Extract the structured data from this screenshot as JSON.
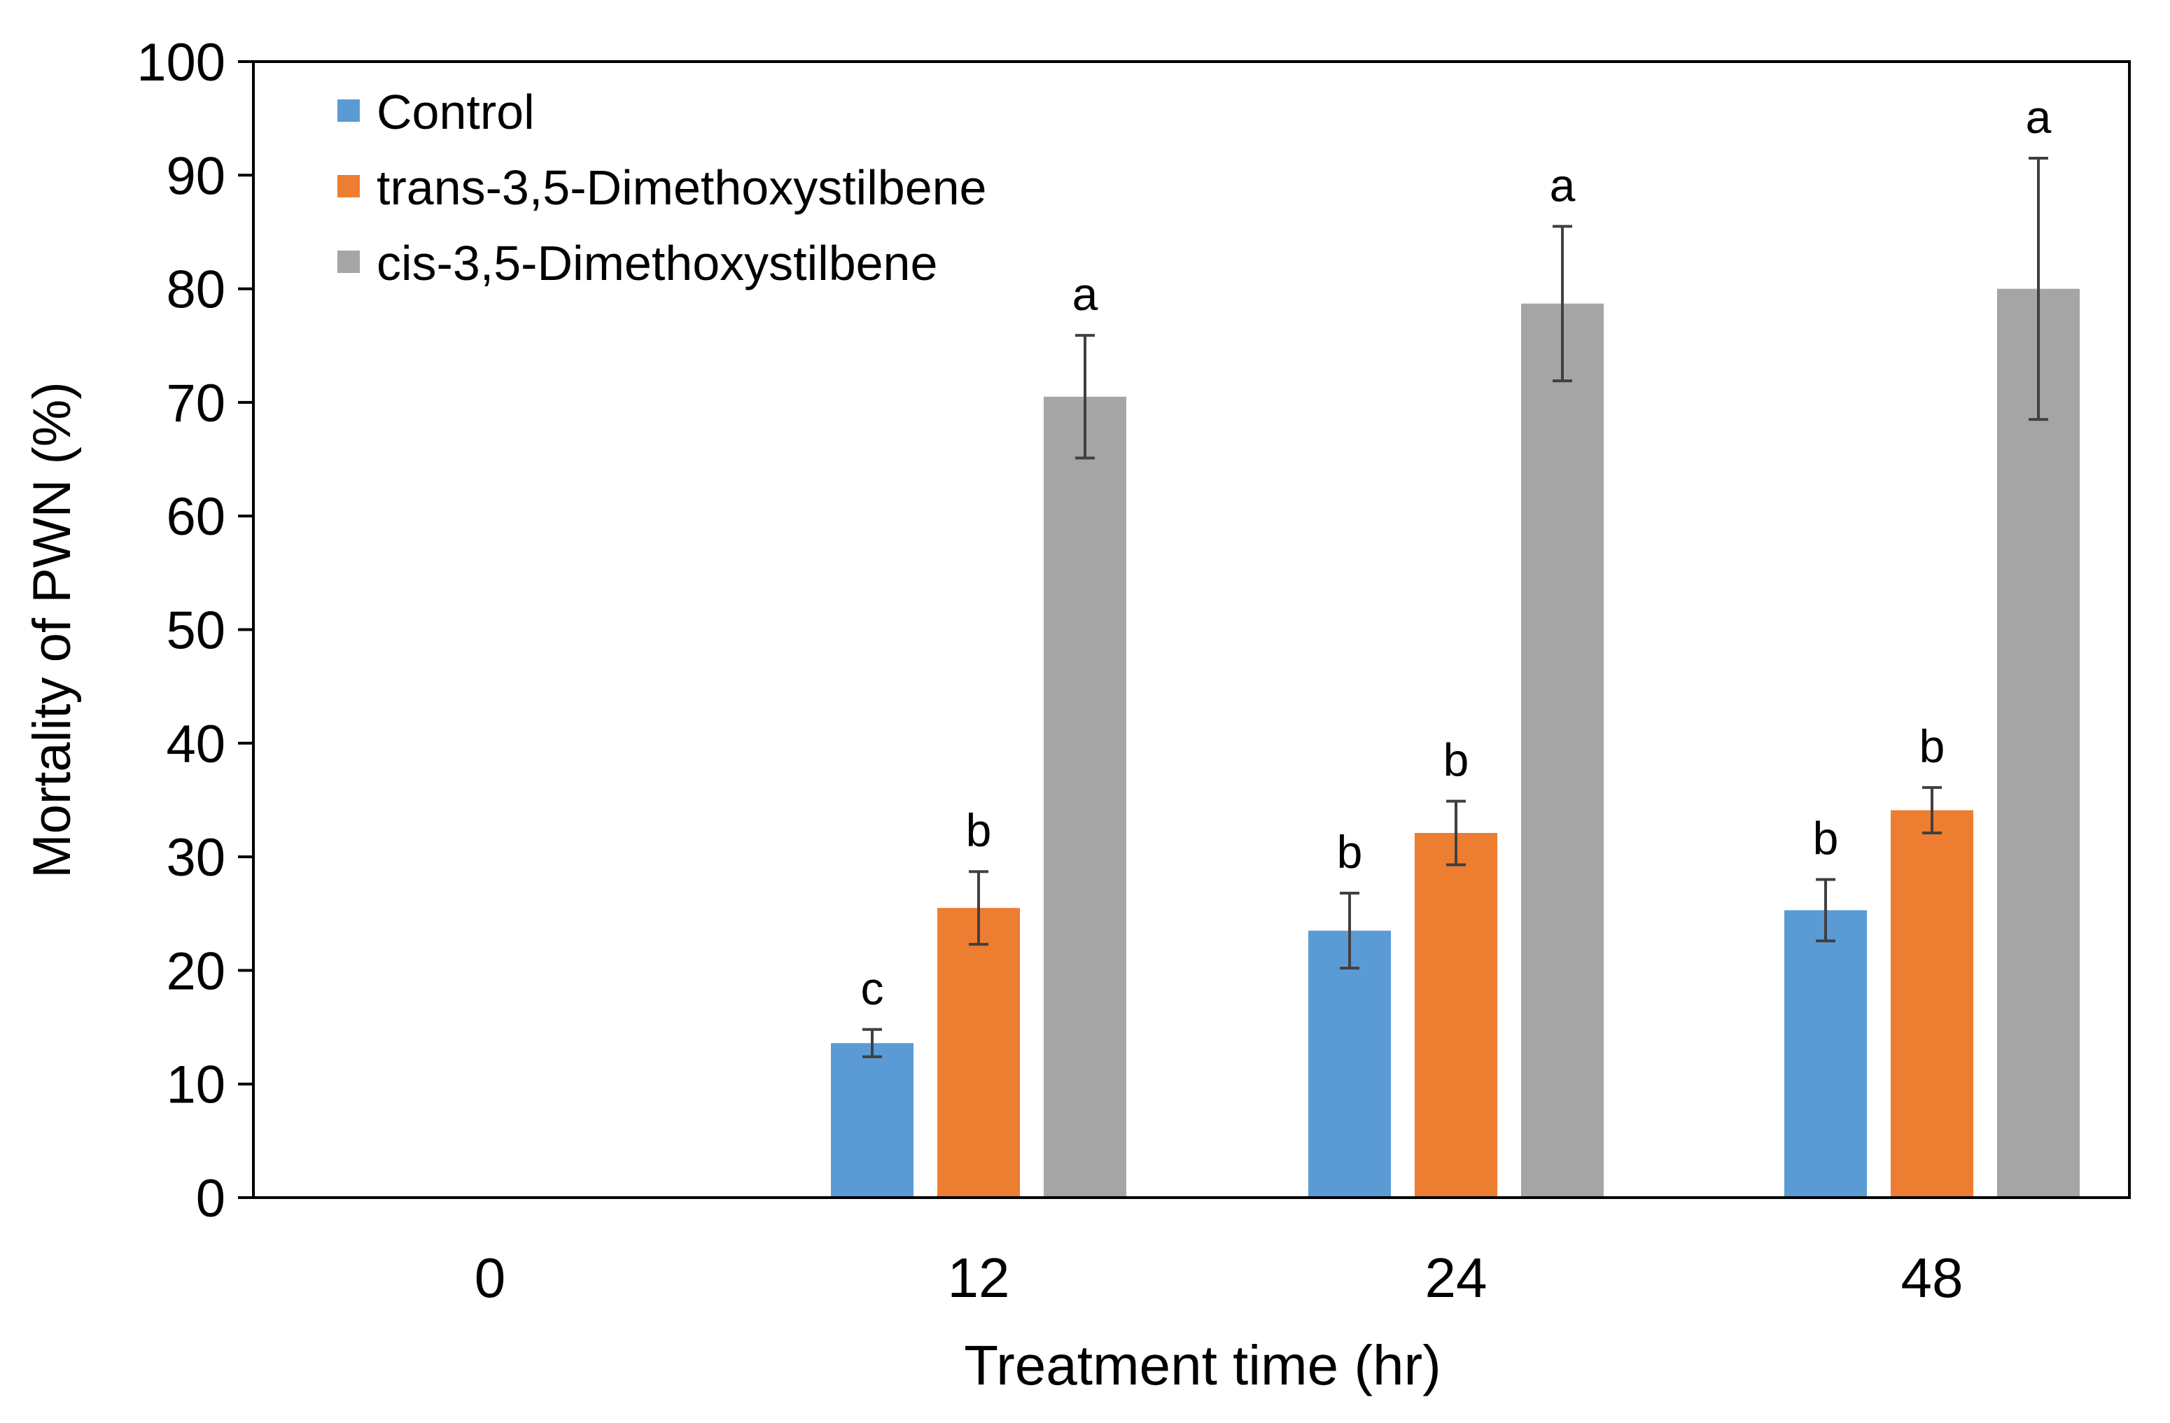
{
  "chart_data": {
    "type": "bar",
    "title": "",
    "xlabel": "Treatment time (hr)",
    "ylabel": "Mortality of PWN (%)",
    "categories": [
      "0",
      "12",
      "24",
      "48"
    ],
    "ylim": [
      0,
      100
    ],
    "yticks": [
      "0",
      "10",
      "20",
      "30",
      "40",
      "50",
      "60",
      "70",
      "80",
      "90",
      "100"
    ],
    "grid": false,
    "legend": {
      "position": "top-left"
    },
    "series": [
      {
        "name": "Control",
        "color": "#5b9bd5",
        "values": [
          0,
          13.6,
          23.5,
          25.3
        ],
        "errors": [
          0,
          1.2,
          3.3,
          2.7
        ],
        "letters": [
          "",
          "c",
          "b",
          "b"
        ]
      },
      {
        "name": "trans-3,5-Dimethoxystilbene",
        "color": "#ed7d31",
        "values": [
          0,
          25.5,
          32.1,
          34.1
        ],
        "errors": [
          0,
          3.2,
          2.8,
          2.0
        ],
        "letters": [
          "",
          "b",
          "b",
          "b"
        ]
      },
      {
        "name": "cis-3,5-Dimethoxystilbene",
        "color": "#a5a5a5",
        "values": [
          0,
          70.5,
          78.7,
          80.0
        ],
        "errors": [
          0,
          5.4,
          6.8,
          11.5
        ],
        "letters": [
          "",
          "a",
          "a",
          "a"
        ]
      }
    ]
  }
}
